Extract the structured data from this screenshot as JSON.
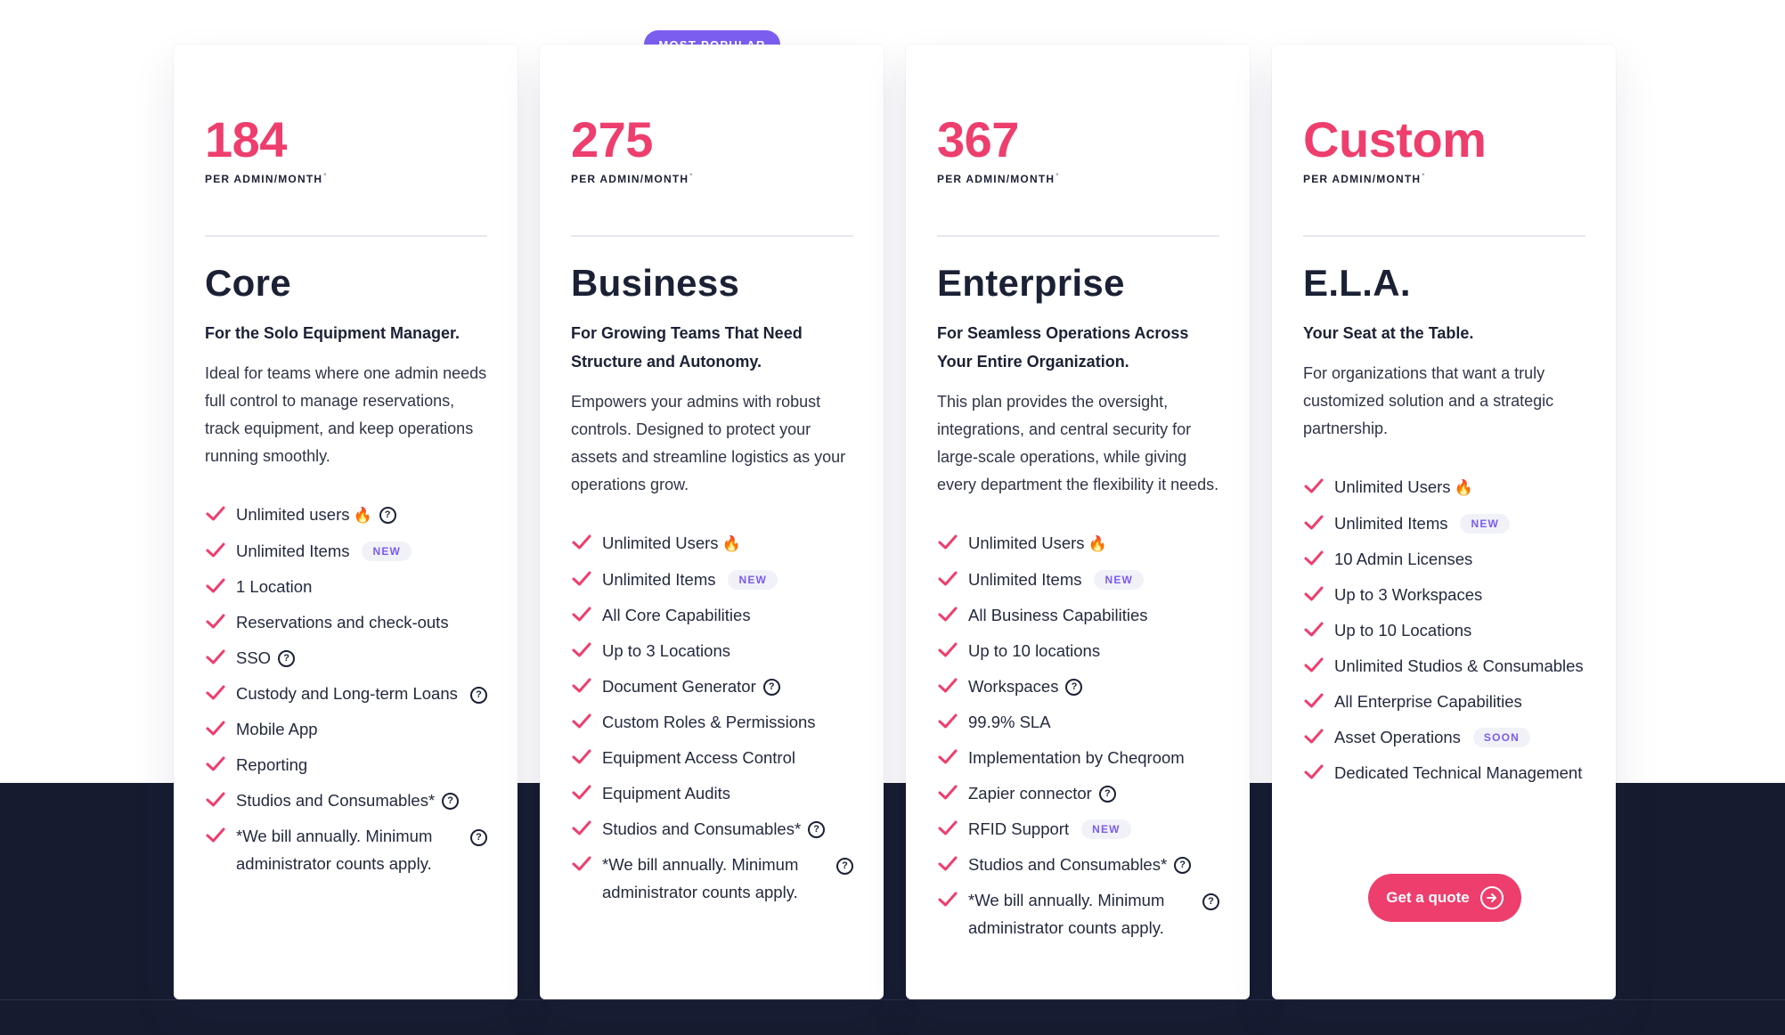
{
  "badge_most_popular": "MOST POPULAR",
  "colors": {
    "accent": "#ee3e6d",
    "purple": "#7c5ff0",
    "dark": "#161c30",
    "text": "#1b2135"
  },
  "icons": {
    "check": "check-icon",
    "help": "question-circle-icon",
    "fire": "fire-icon",
    "arrow": "arrow-right-circle-icon"
  },
  "cards": [
    {
      "price": "184",
      "period": "PER ADMIN/MONTH",
      "period_mark": "*",
      "name": "Core",
      "tagline": "For the Solo Equipment Manager.",
      "description": "Ideal for teams where one admin needs full control to manage reservations, track equipment, and keep operations running smoothly.",
      "features": [
        {
          "text": "Unlimited users",
          "fire": "🔥",
          "help": true
        },
        {
          "text": "Unlimited Items",
          "badge": "NEW"
        },
        {
          "text": "1 Location"
        },
        {
          "text": "Reservations and check-outs"
        },
        {
          "text": "SSO",
          "help": true
        },
        {
          "text": "Custody and Long-term Loans",
          "help_right": true
        },
        {
          "text": "Mobile App"
        },
        {
          "text": "Reporting"
        },
        {
          "text": "Studios and Consumables*",
          "help": true
        },
        {
          "text": "*We bill annually. Minimum administrator counts apply.",
          "help_right": true
        }
      ]
    },
    {
      "price": "275",
      "period": "PER ADMIN/MONTH",
      "period_mark": "*",
      "name": "Business",
      "tagline": "For Growing Teams That Need Structure and Autonomy.",
      "description": "Empowers your admins with robust controls. Designed to protect your assets and streamline logistics as your operations grow.",
      "features": [
        {
          "text": "Unlimited Users",
          "fire": "🔥"
        },
        {
          "text": "Unlimited Items",
          "badge": "NEW"
        },
        {
          "text": "All Core Capabilities"
        },
        {
          "text": "Up to 3 Locations"
        },
        {
          "text": "Document Generator",
          "help": true
        },
        {
          "text": "Custom Roles & Permissions"
        },
        {
          "text": "Equipment Access Control"
        },
        {
          "text": "Equipment Audits"
        },
        {
          "text": "Studios and Consumables*",
          "help": true
        },
        {
          "text": "*We bill annually. Minimum administrator counts apply.",
          "help_right": true
        }
      ]
    },
    {
      "price": "367",
      "period": "PER ADMIN/MONTH",
      "period_mark": "*",
      "name": "Enterprise",
      "tagline": "For Seamless Operations Across Your Entire Organization.",
      "description": "This plan provides the oversight, integrations, and central security for large-scale operations, while giving every department the flexibility it needs.",
      "features": [
        {
          "text": "Unlimited Users",
          "fire": "🔥"
        },
        {
          "text": "Unlimited Items",
          "badge": "NEW"
        },
        {
          "text": "All Business Capabilities"
        },
        {
          "text": "Up to 10 locations"
        },
        {
          "text": "Workspaces",
          "help": true
        },
        {
          "text": "99.9% SLA"
        },
        {
          "text": "Implementation by Cheqroom"
        },
        {
          "text": "Zapier connector",
          "help": true
        },
        {
          "text": "RFID Support",
          "badge": "NEW"
        },
        {
          "text": "Studios and Consumables*",
          "help": true
        },
        {
          "text": "*We bill annually. Minimum administrator counts apply.",
          "help_right": true
        }
      ]
    },
    {
      "price": "Custom",
      "period": "PER ADMIN/MONTH",
      "period_mark": "*",
      "name": "E.L.A.",
      "tagline": "Your Seat at the Table.",
      "description": "For organizations that want a truly customized solution and a strategic partnership.",
      "features": [
        {
          "text": "Unlimited Users",
          "fire": "🔥"
        },
        {
          "text": "Unlimited Items",
          "badge": "NEW"
        },
        {
          "text": "10 Admin Licenses"
        },
        {
          "text": "Up to 3 Workspaces"
        },
        {
          "text": "Up to 10 Locations"
        },
        {
          "text": "Unlimited Studios & Consumables"
        },
        {
          "text": "All Enterprise Capabilities"
        },
        {
          "text": "Asset Operations",
          "badge": "SOON"
        },
        {
          "text": "Dedicated Technical Management"
        }
      ],
      "cta": "Get a quote"
    }
  ]
}
